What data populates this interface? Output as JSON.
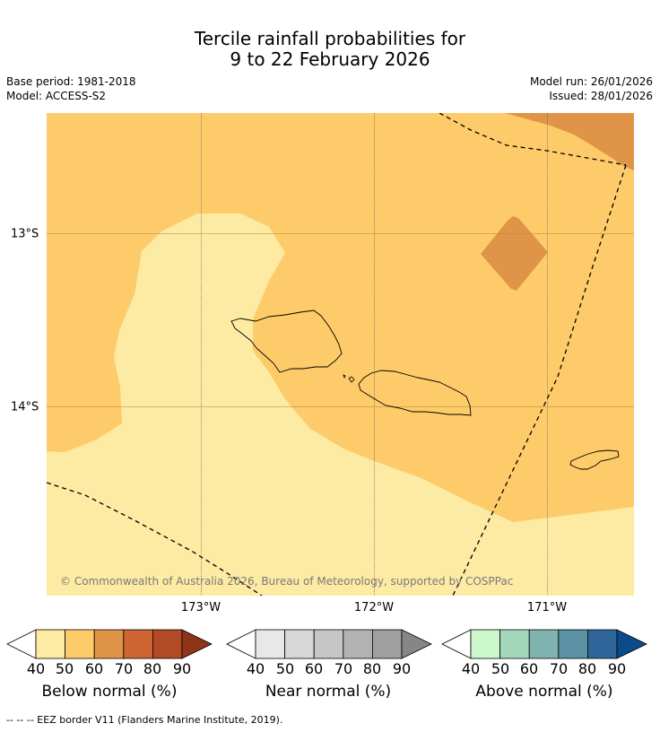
{
  "title": {
    "line1": "Tercile rainfall probabilities for",
    "line2": "9 to 22 February 2026"
  },
  "meta": {
    "base_period": "Base period: 1981-2018",
    "model": "Model: ACCESS-S2",
    "model_run": "Model run: 26/01/2026",
    "issued": "Issued: 28/01/2026"
  },
  "map": {
    "lon_labels": [
      "173°W",
      "172°W",
      "171°W"
    ],
    "lat_labels": [
      "13°S",
      "14°S"
    ],
    "copyright": "© Commonwealth of Australia 2026, Bureau of Meteorology, supported by COSPPac",
    "colors": {
      "below_40_50": "#fdeaa3",
      "below_50_60": "#fdcb69",
      "below_60_70": "#e09448",
      "ocean_background": "#fdcb69"
    }
  },
  "legend": {
    "ticks": [
      "40",
      "50",
      "60",
      "70",
      "80",
      "90"
    ],
    "below": {
      "title": "Below normal (%)",
      "colors": [
        "#fdeaa3",
        "#fdcb69",
        "#e09448",
        "#ce6431",
        "#b24a25",
        "#8f3419"
      ]
    },
    "near": {
      "title": "Near normal (%)",
      "colors": [
        "#e8e8e8",
        "#d7d7d7",
        "#c6c6c6",
        "#b2b2b2",
        "#9f9f9f",
        "#868686"
      ]
    },
    "above": {
      "title": "Above normal (%)",
      "colors": [
        "#ccf7cb",
        "#a4d8bd",
        "#80b3b0",
        "#5a91a3",
        "#2f6598",
        "#0d4a8a"
      ]
    }
  },
  "footer": {
    "eez_note": "--  --  -- EEZ border V11 (Flanders Marine Institute, 2019)."
  }
}
